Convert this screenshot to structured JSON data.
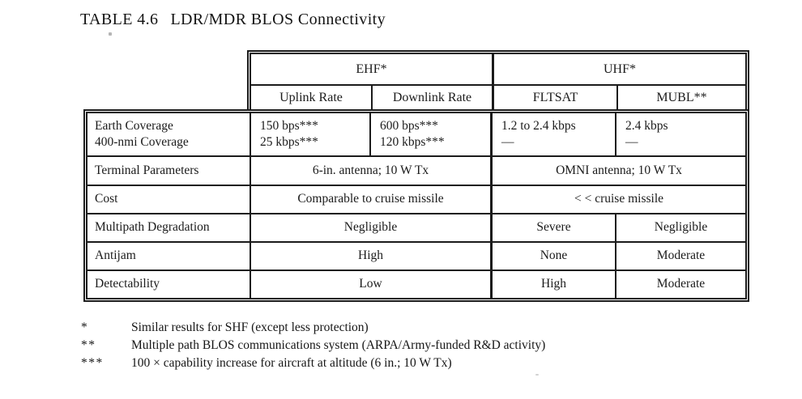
{
  "title": {
    "label": "TABLE 4.6",
    "text": "LDR/MDR BLOS Connectivity"
  },
  "table": {
    "groups": {
      "ehf": "EHF*",
      "uhf": "UHF*"
    },
    "columns": {
      "uplink": "Uplink Rate",
      "downlink": "Downlink Rate",
      "fltsat": "FLTSAT",
      "mubl": "MUBL**"
    },
    "rows": {
      "coverage": {
        "label1": "Earth Coverage",
        "label2": "400-nmi Coverage",
        "uplink1": "150 bps***",
        "uplink2": "25 kbps***",
        "downlink1": "600 bps***",
        "downlink2": "120 kbps***",
        "fltsat1": "1.2 to 2.4 kbps",
        "fltsat2": "—",
        "mubl1": "2.4 kbps",
        "mubl2": "—"
      },
      "terminal": {
        "label": "Terminal Parameters",
        "ehf": "6-in. antenna; 10 W Tx",
        "uhf": "OMNI antenna; 10 W Tx"
      },
      "cost": {
        "label": "Cost",
        "ehf": "Comparable to cruise missile",
        "uhf": "< < cruise missile"
      },
      "multipath": {
        "label": "Multipath Degradation",
        "ehf": "Negligible",
        "fltsat": "Severe",
        "mubl": "Negligible"
      },
      "antijam": {
        "label": "Antijam",
        "ehf": "High",
        "fltsat": "None",
        "mubl": "Moderate"
      },
      "detectability": {
        "label": "Detectability",
        "ehf": "Low",
        "fltsat": "High",
        "mubl": "Moderate"
      }
    }
  },
  "footnotes": [
    {
      "marker": "*",
      "text": "Similar results for SHF (except less protection)"
    },
    {
      "marker": "**",
      "text": "Multiple path BLOS communications system (ARPA/Army-funded R&D activity)"
    },
    {
      "marker": "***",
      "text": "100 × capability increase for aircraft at altitude (6 in.; 10 W Tx)"
    }
  ],
  "colors": {
    "ink": "#1b1b1b",
    "paper": "#ffffff"
  }
}
